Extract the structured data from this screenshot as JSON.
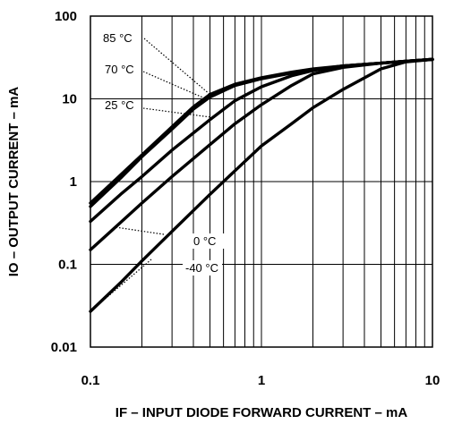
{
  "chart_data": {
    "type": "line",
    "xlabel": "IF – INPUT DIODE FORWARD CURRENT – mA",
    "ylabel": "IO – OUTPUT CURRENT – mA",
    "x_scale": "log",
    "y_scale": "log",
    "xlim": [
      0.1,
      10
    ],
    "ylim": [
      0.01,
      100
    ],
    "grid": true,
    "x_ticks": [
      "0.1",
      "1",
      "10"
    ],
    "y_ticks": [
      "0.01",
      "0.1",
      "1",
      "10",
      "100"
    ],
    "series": [
      {
        "name": "85 °C",
        "x": [
          0.1,
          0.15,
          0.2,
          0.3,
          0.4,
          0.5,
          0.7,
          1,
          1.5,
          2,
          3,
          5,
          7,
          10
        ],
        "y": [
          0.55,
          1.2,
          2.1,
          4.6,
          8,
          11.3,
          15,
          18,
          21,
          23,
          25,
          27,
          28.5,
          30
        ]
      },
      {
        "name": "70 °C",
        "x": [
          0.1,
          0.15,
          0.2,
          0.3,
          0.4,
          0.5,
          0.7,
          1,
          1.5,
          2,
          3,
          5,
          7,
          10
        ],
        "y": [
          0.5,
          1.1,
          2,
          4.3,
          7.5,
          10.5,
          14.5,
          17.5,
          20.5,
          22.5,
          25,
          27,
          28.5,
          30
        ]
      },
      {
        "name": "25 °C",
        "x": [
          0.1,
          0.15,
          0.2,
          0.3,
          0.5,
          0.7,
          1,
          1.5,
          2,
          3,
          5,
          7,
          10
        ],
        "y": [
          0.33,
          0.7,
          1.15,
          2.4,
          5.6,
          9.5,
          14,
          19,
          22,
          25,
          27,
          28.5,
          30
        ]
      },
      {
        "name": "0 °C",
        "x": [
          0.1,
          0.15,
          0.2,
          0.3,
          0.5,
          0.7,
          1,
          1.5,
          2,
          3,
          5,
          7,
          10
        ],
        "y": [
          0.15,
          0.32,
          0.55,
          1.15,
          2.8,
          5,
          8.5,
          14.5,
          20,
          24,
          27,
          28.5,
          30
        ]
      },
      {
        "name": "-40 °C",
        "x": [
          0.1,
          0.15,
          0.2,
          0.3,
          0.5,
          0.7,
          1,
          1.5,
          2,
          3,
          5,
          7,
          10
        ],
        "y": [
          0.027,
          0.06,
          0.11,
          0.25,
          0.7,
          1.35,
          2.7,
          5,
          7.8,
          13,
          23,
          28,
          30
        ]
      }
    ],
    "annotations": [
      {
        "text": "85 °C",
        "series": "85 °C"
      },
      {
        "text": "70 °C",
        "series": "70 °C"
      },
      {
        "text": "25 °C",
        "series": "25 °C"
      },
      {
        "text": "0 °C",
        "series": "0 °C"
      },
      {
        "text": "-40 °C",
        "series": "-40 °C"
      }
    ]
  }
}
